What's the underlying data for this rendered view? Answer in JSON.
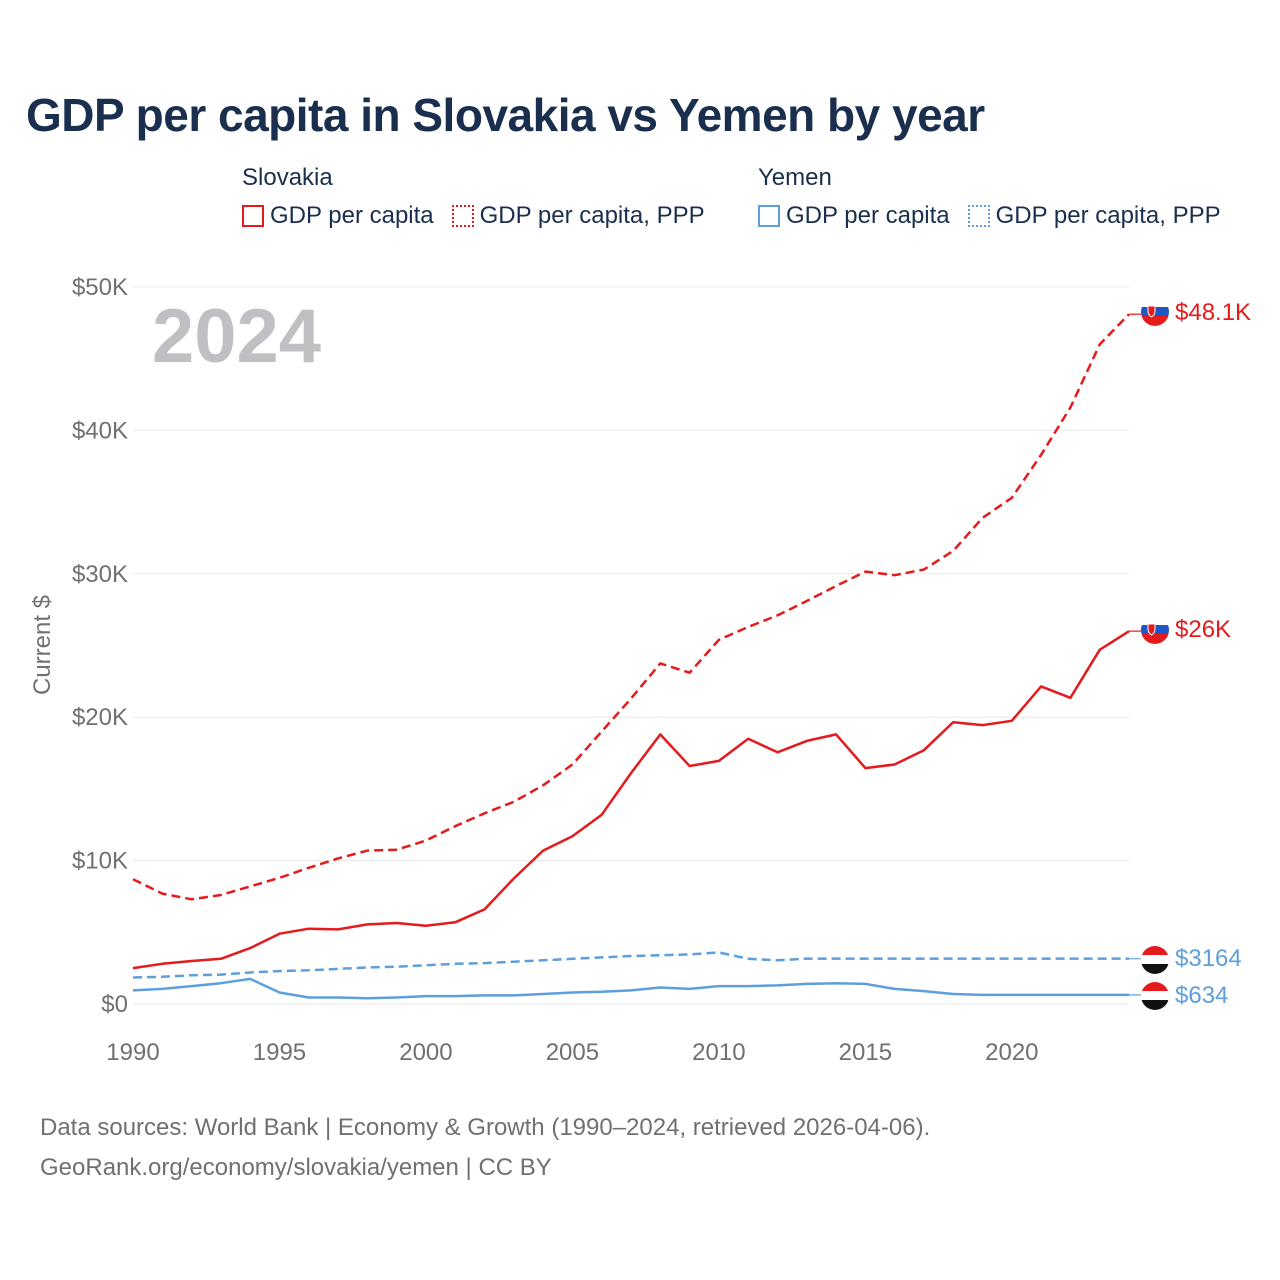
{
  "title": "GDP per capita in Slovakia vs Yemen by year",
  "legend": {
    "groups": [
      {
        "country": "Slovakia",
        "items": [
          {
            "label": "GDP per capita",
            "color": "#e41a1c",
            "style": "solid"
          },
          {
            "label": "GDP per capita, PPP",
            "color": "#e41a1c",
            "style": "dotted"
          }
        ]
      },
      {
        "country": "Yemen",
        "items": [
          {
            "label": "GDP per capita",
            "color": "#5d9fdc",
            "style": "solid"
          },
          {
            "label": "GDP per capita, PPP",
            "color": "#5d9fdc",
            "style": "dotted"
          }
        ]
      }
    ]
  },
  "year_watermark": "2024",
  "footer": {
    "line1": "Data sources: World Bank | Economy & Growth (1990–2024, retrieved 2026-04-06).",
    "line2": "GeoRank.org/economy/slovakia/yemen | CC BY"
  },
  "colors": {
    "slovakia": "#e41a1c",
    "yemen": "#5d9fdc",
    "title": "#1a2f4e"
  },
  "chart_data": {
    "type": "line",
    "title": "GDP per capita in Slovakia vs Yemen by year",
    "xlabel": "",
    "ylabel": "Current $",
    "xlim": [
      1990,
      2024
    ],
    "ylim": [
      0,
      50000
    ],
    "x_ticks": [
      1990,
      1995,
      2000,
      2005,
      2010,
      2015,
      2020
    ],
    "x_tick_labels": [
      "1990",
      "1995",
      "2000",
      "2005",
      "2010",
      "2015",
      "2020"
    ],
    "y_ticks": [
      0,
      10000,
      20000,
      30000,
      40000,
      50000
    ],
    "y_tick_labels": [
      "$0",
      "$10K",
      "$20K",
      "$30K",
      "$40K",
      "$50K"
    ],
    "grid": true,
    "x": [
      1990,
      1991,
      1992,
      1993,
      1994,
      1995,
      1996,
      1997,
      1998,
      1999,
      2000,
      2001,
      2002,
      2003,
      2004,
      2005,
      2006,
      2007,
      2008,
      2009,
      2010,
      2011,
      2012,
      2013,
      2014,
      2015,
      2016,
      2017,
      2018,
      2019,
      2020,
      2021,
      2022,
      2023,
      2024
    ],
    "series": [
      {
        "name": "Slovakia GDP per capita",
        "country": "Slovakia",
        "style": "solid",
        "color": "#e41a1c",
        "end_label": "$26K",
        "values": [
          2500,
          2800,
          3000,
          3150,
          3900,
          4900,
          5250,
          5200,
          5550,
          5650,
          5450,
          5700,
          6600,
          8750,
          10700,
          11700,
          13200,
          16100,
          18800,
          16600,
          16950,
          18500,
          17550,
          18350,
          18800,
          16450,
          16700,
          17700,
          19650,
          19450,
          19750,
          22150,
          21350,
          24700,
          26000
        ]
      },
      {
        "name": "Slovakia GDP per capita, PPP",
        "country": "Slovakia",
        "style": "dotted",
        "color": "#e41a1c",
        "end_label": "$48.1K",
        "values": [
          8700,
          7700,
          7300,
          7600,
          8200,
          8800,
          9500,
          10150,
          10700,
          10750,
          11400,
          12400,
          13300,
          14100,
          15250,
          16700,
          19000,
          21300,
          23750,
          23100,
          25400,
          26300,
          27100,
          28100,
          29150,
          30150,
          29900,
          30300,
          31600,
          33900,
          35300,
          38300,
          41600,
          46000,
          48100
        ]
      },
      {
        "name": "Yemen GDP per capita",
        "country": "Yemen",
        "style": "solid",
        "color": "#5d9fdc",
        "end_label": "$634",
        "values": [
          950,
          1050,
          1250,
          1450,
          1750,
          800,
          450,
          450,
          400,
          450,
          550,
          550,
          600,
          600,
          700,
          800,
          850,
          950,
          1150,
          1050,
          1250,
          1250,
          1300,
          1400,
          1450,
          1400,
          1050,
          900,
          700,
          634,
          634,
          634,
          634,
          634,
          634
        ]
      },
      {
        "name": "Yemen GDP per capita, PPP",
        "country": "Yemen",
        "style": "dotted",
        "color": "#5d9fdc",
        "end_label": "$3164",
        "values": [
          1850,
          1900,
          2000,
          2050,
          2200,
          2300,
          2350,
          2450,
          2550,
          2600,
          2700,
          2800,
          2850,
          2950,
          3050,
          3150,
          3250,
          3350,
          3400,
          3450,
          3600,
          3150,
          3050,
          3164,
          3164,
          3164,
          3164,
          3164,
          3164,
          3164,
          3164,
          3164,
          3164,
          3164,
          3164
        ]
      }
    ]
  }
}
